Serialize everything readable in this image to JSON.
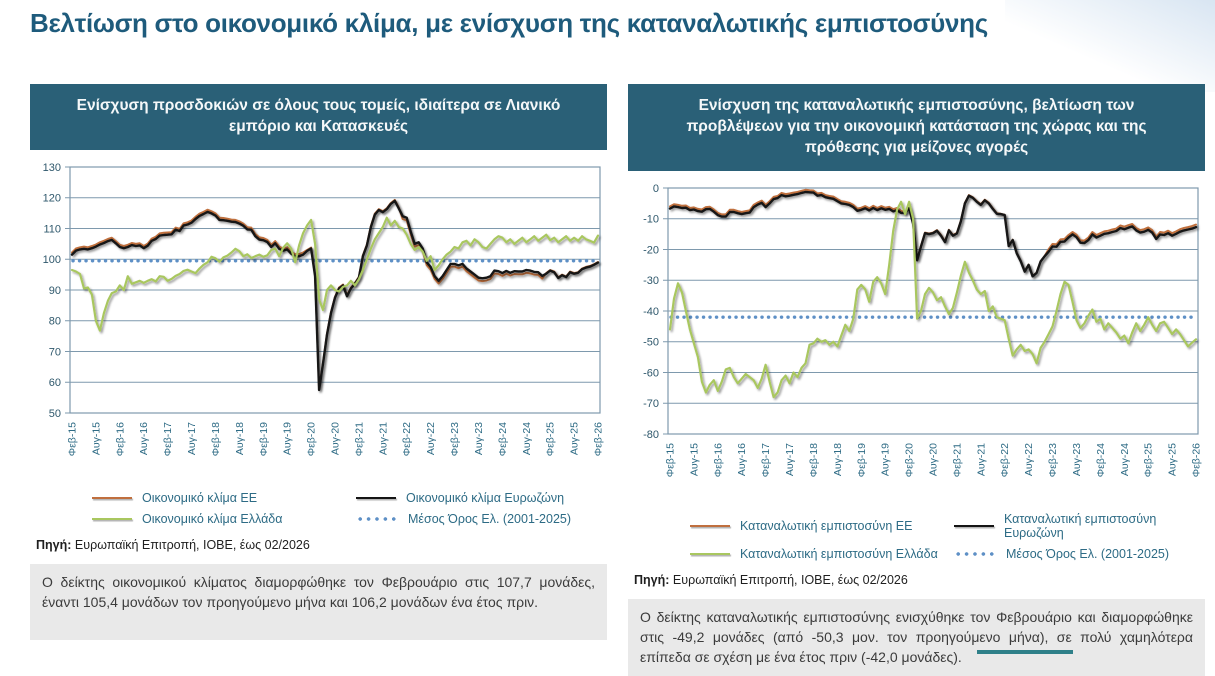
{
  "page": {
    "title": "Βελτίωση στο οικονομικό κλίμα, με ενίσχυση της καταναλωτικής εμπιστοσύνης",
    "title_color": "#1e5b7c",
    "header_bar_color": "#2a6077",
    "accent_color": "#d8e5f2"
  },
  "source": {
    "label": "Πηγή:",
    "text": "Ευρωπαϊκή Επιτροπή, ΙΟΒΕ, έως 02/2026"
  },
  "panels": [
    {
      "header": "Ενίσχυση προσδοκιών σε όλους τους τομείς, ιδιαίτερα σε Λιανικό εμπόριο και Κατασκευές",
      "note": "Ο δείκτης οικονομικού κλίματος διαμορφώθηκε τον Φεβρουάριο στις 107,7 μονάδες, έναντι 105,4 μονάδων τον προηγούμενο μήνα και 106,2 μονάδων ένα έτος πριν."
    },
    {
      "header": "Ενίσχυση της καταναλωτικής εμπιστοσύνης, βελτίωση των προβλέψεων για την οικονομική κατάσταση της χώρας και της πρόθεσης για μείζονες αγορές",
      "note": "Ο δείκτης καταναλωτικής εμπιστοσύνης ενισχύθηκε τον Φεβρουάριο και διαμορφώθηκε στις -49,2 μονάδες (από -50,3 μον. τον προηγούμενο μήνα), σε πολύ χαμηλότερα επίπεδα σε σχέση με ένα έτος πριν (-42,0 μονάδες)."
    }
  ],
  "chart_data": [
    {
      "type": "line",
      "name": "economic-sentiment",
      "title": "",
      "ylim": [
        50,
        130
      ],
      "ytick_step": 10,
      "grid": true,
      "legend_position": "bottom",
      "x_points": 133,
      "x_tick_every": 6,
      "x_start": "Φεβ-15",
      "x_end": "Φεβ-26",
      "x_tick_labels": [
        "Φεβ-15",
        "Αυγ-15",
        "Φεβ-16",
        "Αυγ-16",
        "Φεβ-17",
        "Αυγ-17",
        "Φεβ-18",
        "Αυγ-18",
        "Φεβ-19",
        "Αυγ-19",
        "Φεβ-20",
        "Αυγ-20",
        "Φεβ-21",
        "Αυγ-21",
        "Φεβ-22",
        "Αυγ-22",
        "Φεβ-23",
        "Αυγ-23",
        "Φεβ-24",
        "Αυγ-24",
        "Φεβ-25",
        "Αυγ-25",
        "Φεβ-26"
      ],
      "series": [
        {
          "name": "Οικονομικό κλίμα ΕΕ",
          "color": "#c06f3e",
          "width": 2.0,
          "values": [
            102.2,
            103.5,
            103.9,
            104.1,
            103.9,
            104.3,
            104.8,
            105.5,
            106.0,
            106.6,
            107.0,
            105.9,
            104.7,
            104.3,
            104.7,
            105.3,
            105.0,
            105.2,
            104.3,
            105.1,
            106.7,
            107.3,
            108.4,
            108.6,
            108.7,
            108.8,
            110.3,
            109.9,
            111.7,
            112.0,
            112.6,
            113.8,
            114.8,
            115.4,
            116.1,
            115.6,
            114.9,
            113.5,
            113.4,
            113.2,
            112.9,
            112.8,
            112.3,
            111.6,
            110.4,
            110.3,
            108.2,
            107.1,
            106.9,
            106.3,
            104.7,
            105.9,
            104.1,
            103.5,
            103.9,
            102.5,
            101.6,
            101.7,
            102.2,
            103.0,
            103.8,
            94.8,
            57.8,
            66.3,
            75.8,
            82.8,
            87.8,
            90.8,
            91.8,
            88.3,
            90.8,
            92.3,
            94.3,
            101.3,
            104.8,
            110.8,
            114.8,
            116.3,
            115.6,
            116.6,
            118.3,
            119.3,
            116.8,
            113.1,
            112.6,
            108.1,
            104.1,
            104.6,
            102.6,
            98.1,
            96.6,
            93.6,
            92.1,
            93.6,
            95.6,
            97.6,
            97.6,
            97.1,
            97.6,
            96.1,
            95.1,
            94.1,
            93.1,
            92.9,
            93.1,
            93.6,
            95.4,
            95.2,
            94.6,
            95.3,
            94.7,
            95.2,
            95.1,
            95.1,
            95.6,
            95.4,
            95.0,
            94.9,
            93.7,
            95.5,
            96.5,
            96.0,
            94.1,
            95.0,
            94.4,
            96.0,
            95.5,
            95.8,
            97.0,
            97.5,
            97.8,
            98.4,
            99.1
          ]
        },
        {
          "name": "Οικονομικό κλίμα Ευρωζώνη",
          "color": "#141414",
          "width": 2.4,
          "values": [
            101.5,
            102.8,
            103.2,
            103.4,
            103.2,
            103.6,
            104.1,
            104.8,
            105.3,
            105.9,
            106.3,
            105.2,
            104.0,
            103.6,
            104.0,
            104.6,
            104.3,
            104.5,
            103.6,
            104.4,
            106.0,
            106.6,
            107.7,
            107.9,
            108.0,
            108.1,
            109.6,
            109.2,
            111.0,
            111.3,
            111.9,
            113.1,
            114.1,
            114.7,
            115.4,
            114.9,
            114.2,
            112.8,
            112.7,
            112.5,
            112.2,
            112.1,
            111.6,
            110.9,
            109.7,
            109.6,
            107.5,
            106.4,
            106.2,
            105.6,
            104.0,
            105.2,
            103.4,
            102.8,
            103.2,
            101.8,
            100.9,
            101.0,
            101.5,
            102.7,
            103.5,
            94.5,
            57.5,
            66.0,
            75.5,
            82.5,
            87.5,
            90.5,
            91.5,
            88.0,
            90.5,
            92.0,
            94.0,
            101.0,
            104.5,
            110.5,
            114.5,
            116.0,
            115.3,
            116.3,
            118.0,
            119.0,
            116.5,
            114.0,
            113.5,
            109.0,
            105.0,
            105.5,
            103.5,
            99.0,
            97.5,
            94.5,
            93.0,
            94.5,
            96.5,
            98.5,
            98.5,
            98.0,
            98.5,
            97.0,
            96.0,
            95.0,
            94.0,
            93.8,
            94.0,
            94.5,
            96.3,
            96.1,
            95.5,
            96.2,
            95.6,
            96.1,
            96.0,
            96.0,
            96.5,
            96.3,
            95.9,
            95.8,
            94.6,
            95.3,
            96.3,
            95.8,
            93.9,
            94.8,
            94.2,
            95.8,
            95.3,
            95.6,
            96.8,
            97.3,
            97.6,
            98.2,
            98.9
          ]
        },
        {
          "name": "Οικονομικό κλίμα Ελλάδα",
          "color": "#a9c75f",
          "width": 2.2,
          "values": [
            96.5,
            96.0,
            95.2,
            90.5,
            90.8,
            88.5,
            80.0,
            76.8,
            82.5,
            86.5,
            89.0,
            89.5,
            91.5,
            90.0,
            94.5,
            92.0,
            92.5,
            93.0,
            92.3,
            93.0,
            93.5,
            92.8,
            94.5,
            94.3,
            93.0,
            93.6,
            94.6,
            95.2,
            96.2,
            96.6,
            96.0,
            95.5,
            97.0,
            98.2,
            99.0,
            100.8,
            100.3,
            99.2,
            100.6,
            101.2,
            102.2,
            103.4,
            102.6,
            101.0,
            101.6,
            100.4,
            101.0,
            101.5,
            100.8,
            101.3,
            103.0,
            103.5,
            101.0,
            103.8,
            105.2,
            103.5,
            99.0,
            104.5,
            108.5,
            111.0,
            112.8,
            105.0,
            87.0,
            83.5,
            90.0,
            91.5,
            90.0,
            89.5,
            91.0,
            91.5,
            93.0,
            91.5,
            93.5,
            96.5,
            100.0,
            103.5,
            106.5,
            108.5,
            110.5,
            113.5,
            111.0,
            112.5,
            110.5,
            110.0,
            108.0,
            105.0,
            103.0,
            104.0,
            102.5,
            99.5,
            101.0,
            96.5,
            98.0,
            100.0,
            101.5,
            102.5,
            104.0,
            103.5,
            105.5,
            106.0,
            104.5,
            106.5,
            105.5,
            104.0,
            103.5,
            105.0,
            106.5,
            107.5,
            107.0,
            105.5,
            106.5,
            105.0,
            106.0,
            107.0,
            105.5,
            106.5,
            107.5,
            106.0,
            107.0,
            108.0,
            106.2,
            107.0,
            105.5,
            106.5,
            107.5,
            106.0,
            107.0,
            106.0,
            107.5,
            106.5,
            106.0,
            105.4,
            107.7
          ]
        },
        {
          "name": "Μέσος Όρος Ελ. (2001-2025)",
          "color": "#5e90c6",
          "style": "dotted",
          "value": 99.5
        }
      ]
    },
    {
      "type": "line",
      "name": "consumer-confidence",
      "title": "",
      "ylim": [
        -80,
        0
      ],
      "ytick_step": 10,
      "grid": true,
      "legend_position": "bottom",
      "x_points": 133,
      "x_tick_every": 6,
      "x_start": "Φεβ-15",
      "x_end": "Φεβ-26",
      "x_tick_labels": [
        "Φεβ-15",
        "Αυγ-15",
        "Φεβ-16",
        "Αυγ-16",
        "Φεβ-17",
        "Αυγ-17",
        "Φεβ-18",
        "Αυγ-18",
        "Φεβ-19",
        "Αυγ-19",
        "Φεβ-20",
        "Αυγ-20",
        "Φεβ-21",
        "Αυγ-21",
        "Φεβ-22",
        "Αυγ-22",
        "Φεβ-23",
        "Αυγ-23",
        "Φεβ-24",
        "Αυγ-24",
        "Φεβ-25",
        "Αυγ-25",
        "Φεβ-26"
      ],
      "series": [
        {
          "name": "Καταναλωτική εμπιστοσύνη ΕΕ",
          "color": "#c06f3e",
          "width": 2.0,
          "values": [
            -6.0,
            -5.3,
            -5.5,
            -5.8,
            -5.7,
            -6.5,
            -6.3,
            -6.8,
            -7.0,
            -6.2,
            -6.1,
            -7.0,
            -8.1,
            -8.6,
            -8.6,
            -7.1,
            -7.1,
            -7.5,
            -7.8,
            -7.5,
            -7.3,
            -5.5,
            -4.7,
            -4.1,
            -5.5,
            -4.3,
            -2.9,
            -2.6,
            -1.6,
            -2.0,
            -1.8,
            -1.5,
            -1.3,
            -0.9,
            -0.6,
            -0.7,
            -0.8,
            -1.8,
            -1.6,
            -2.3,
            -2.6,
            -2.8,
            -3.6,
            -4.3,
            -4.5,
            -4.8,
            -5.5,
            -6.7,
            -6.4,
            -5.9,
            -6.6,
            -5.8,
            -6.5,
            -5.9,
            -6.4,
            -6.1,
            -6.9,
            -6.5,
            -7.4,
            -7.9,
            -6.4,
            -11.4,
            -23.3,
            -18.8,
            -14.5,
            -14.8,
            -14.5,
            -13.7,
            -15.3,
            -17.4,
            -13.6,
            -15.3,
            -14.6,
            -10.6,
            -4.8,
            -2.3,
            -3.0,
            -4.3,
            -5.3,
            -3.8,
            -4.8,
            -6.6,
            -8.2,
            -8.4,
            -8.7,
            -18.8,
            -16.8,
            -21.1,
            -23.7,
            -27.1,
            -24.9,
            -28.6,
            -27.5,
            -23.8,
            -22.1,
            -19.9,
            -18.2,
            -18.3,
            -16.7,
            -16.6,
            -15.3,
            -14.3,
            -15.2,
            -17.0,
            -17.1,
            -16.1,
            -14.3,
            -15.3,
            -14.7,
            -14.1,
            -13.9,
            -13.5,
            -13.2,
            -12.2,
            -12.6,
            -12.1,
            -11.7,
            -13.0,
            -13.7,
            -13.4,
            -12.8,
            -13.7,
            -15.8,
            -14.3,
            -14.5,
            -13.9,
            -14.7,
            -14.1,
            -13.4,
            -13.0,
            -12.7,
            -12.4,
            -11.9
          ]
        },
        {
          "name": "Καταναλωτική εμπιστοσύνη Ευρωζώνη",
          "color": "#141414",
          "width": 2.4,
          "values": [
            -6.7,
            -6.0,
            -6.2,
            -6.5,
            -6.4,
            -7.2,
            -7.0,
            -7.5,
            -7.7,
            -6.9,
            -6.8,
            -7.7,
            -8.8,
            -9.3,
            -9.3,
            -7.8,
            -7.8,
            -8.2,
            -8.5,
            -8.2,
            -8.0,
            -6.2,
            -5.4,
            -4.8,
            -6.2,
            -5.0,
            -3.6,
            -3.3,
            -2.3,
            -2.7,
            -2.5,
            -2.2,
            -2.0,
            -1.6,
            -1.3,
            -1.4,
            -1.5,
            -2.5,
            -2.3,
            -3.0,
            -3.3,
            -3.5,
            -4.3,
            -5.0,
            -5.2,
            -5.5,
            -6.2,
            -7.4,
            -7.1,
            -6.6,
            -7.3,
            -6.5,
            -7.2,
            -6.6,
            -7.1,
            -6.8,
            -7.6,
            -7.2,
            -8.1,
            -8.1,
            -6.6,
            -11.6,
            -23.5,
            -19.0,
            -14.7,
            -15.0,
            -14.7,
            -13.9,
            -15.5,
            -17.6,
            -13.8,
            -15.5,
            -14.8,
            -10.8,
            -5.0,
            -2.5,
            -3.2,
            -4.5,
            -5.5,
            -4.0,
            -5.0,
            -6.8,
            -8.4,
            -8.5,
            -8.8,
            -18.9,
            -16.9,
            -21.2,
            -23.8,
            -27.2,
            -25.0,
            -28.7,
            -27.6,
            -23.9,
            -22.2,
            -20.7,
            -19.0,
            -19.1,
            -17.5,
            -17.4,
            -16.1,
            -15.1,
            -16.0,
            -17.8,
            -17.9,
            -16.9,
            -15.1,
            -16.1,
            -15.5,
            -14.9,
            -14.7,
            -14.3,
            -14.0,
            -13.0,
            -13.4,
            -12.9,
            -12.5,
            -13.8,
            -14.5,
            -14.2,
            -13.6,
            -14.5,
            -16.6,
            -15.1,
            -15.3,
            -14.7,
            -15.5,
            -14.9,
            -14.2,
            -13.8,
            -13.5,
            -13.2,
            -12.7
          ]
        },
        {
          "name": "Καταναλωτική εμπιστοσύνη Ελλάδα",
          "color": "#a9c75f",
          "width": 2.2,
          "values": [
            -46.0,
            -36.0,
            -31.0,
            -34.0,
            -40.0,
            -46.0,
            -50.5,
            -55.0,
            -63.0,
            -66.5,
            -64.0,
            -62.5,
            -66.0,
            -63.0,
            -59.0,
            -58.5,
            -61.5,
            -63.5,
            -62.0,
            -60.5,
            -61.5,
            -62.5,
            -65.0,
            -62.0,
            -57.5,
            -63.0,
            -68.0,
            -66.5,
            -62.5,
            -61.0,
            -63.5,
            -60.0,
            -61.5,
            -58.5,
            -57.0,
            -51.0,
            -50.5,
            -49.0,
            -50.0,
            -49.5,
            -51.0,
            -50.0,
            -51.5,
            -48.0,
            -44.5,
            -46.5,
            -42.5,
            -33.0,
            -31.5,
            -33.0,
            -37.0,
            -30.5,
            -29.0,
            -31.0,
            -34.5,
            -25.0,
            -14.0,
            -7.0,
            -4.5,
            -8.5,
            -4.5,
            -10.0,
            -42.5,
            -40.0,
            -34.5,
            -32.5,
            -34.0,
            -36.5,
            -35.5,
            -38.5,
            -41.0,
            -39.0,
            -34.0,
            -28.5,
            -24.0,
            -27.5,
            -30.0,
            -33.0,
            -34.5,
            -33.5,
            -40.0,
            -38.5,
            -42.0,
            -42.5,
            -43.0,
            -49.0,
            -54.5,
            -52.5,
            -51.0,
            -53.0,
            -52.5,
            -54.0,
            -57.0,
            -52.0,
            -50.0,
            -47.5,
            -45.0,
            -40.0,
            -34.5,
            -30.5,
            -31.5,
            -37.0,
            -43.0,
            -45.5,
            -44.0,
            -41.5,
            -39.5,
            -43.5,
            -42.5,
            -46.0,
            -44.0,
            -45.5,
            -47.0,
            -49.0,
            -48.0,
            -50.5,
            -47.0,
            -44.0,
            -46.5,
            -44.5,
            -42.0,
            -44.5,
            -46.5,
            -44.0,
            -43.5,
            -45.5,
            -47.5,
            -46.0,
            -47.5,
            -49.5,
            -51.5,
            -50.3,
            -49.2
          ]
        },
        {
          "name": "Μέσος Όρος Ελ. (2001-2025)",
          "color": "#5e90c6",
          "style": "dotted",
          "value": -42.0
        }
      ]
    }
  ]
}
